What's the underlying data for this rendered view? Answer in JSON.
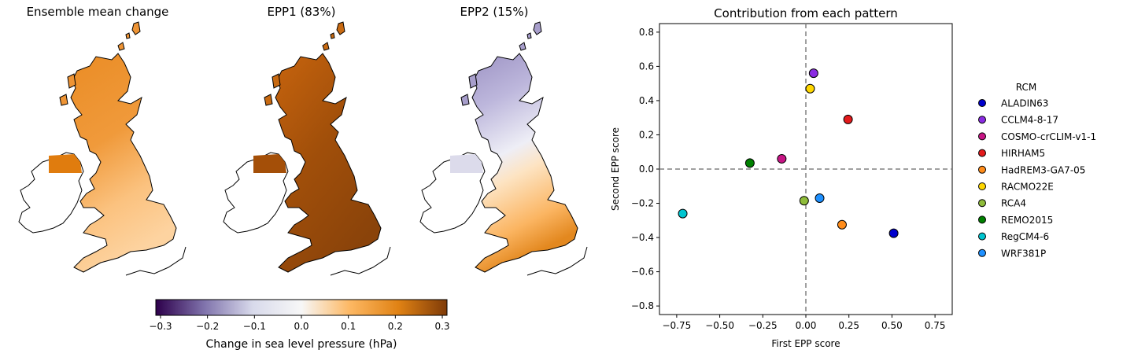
{
  "maps": [
    {
      "title": "Ensemble mean change",
      "palette": "mean"
    },
    {
      "title": "EPP1 (83%)",
      "palette": "epp1"
    },
    {
      "title": "EPP2 (15%)",
      "palette": "epp2"
    }
  ],
  "colorbar": {
    "label": "Change in sea level pressure (hPa)",
    "ticks": [
      "−0.3",
      "−0.2",
      "−0.1",
      "0.0",
      "0.1",
      "0.2",
      "0.3"
    ],
    "range": [
      -0.31,
      0.31
    ],
    "colormap": [
      "#2d004b",
      "#8073ac",
      "#d8daeb",
      "#f7f7f7",
      "#fdb863",
      "#e08214",
      "#7f3b08"
    ]
  },
  "chart_data": {
    "type": "scatter",
    "title": "Contribution from each pattern",
    "xlabel": "First EPP score",
    "ylabel": "Second EPP score",
    "xlim": [
      -0.85,
      0.85
    ],
    "ylim": [
      -0.85,
      0.85
    ],
    "xticks": [
      "−0.75",
      "−0.50",
      "−0.25",
      "0.00",
      "0.25",
      "0.50",
      "0.75"
    ],
    "yticks": [
      "−0.8",
      "−0.6",
      "−0.4",
      "−0.2",
      "0.0",
      "0.2",
      "0.4",
      "0.6",
      "0.8"
    ],
    "reference_lines": {
      "x": 0,
      "y": 0,
      "style": "dashed"
    },
    "legend_title": "RCM",
    "legend_position": "right",
    "series": [
      {
        "name": "ALADIN63",
        "color": "#0000cd",
        "x": 0.51,
        "y": -0.375
      },
      {
        "name": "CCLM4-8-17",
        "color": "#8a2be2",
        "x": 0.045,
        "y": 0.56
      },
      {
        "name": "COSMO-crCLIM-v1-1",
        "color": "#c71585",
        "x": -0.14,
        "y": 0.06
      },
      {
        "name": "HIRHAM5",
        "color": "#e31a1c",
        "x": 0.245,
        "y": 0.29
      },
      {
        "name": "HadREM3-GA7-05",
        "color": "#ff8c1a",
        "x": 0.21,
        "y": -0.325
      },
      {
        "name": "RACMO22E",
        "color": "#ffd700",
        "x": 0.025,
        "y": 0.47
      },
      {
        "name": "RCA4",
        "color": "#8fbc3a",
        "x": -0.01,
        "y": -0.185
      },
      {
        "name": "REMO2015",
        "color": "#008000",
        "x": -0.325,
        "y": 0.035
      },
      {
        "name": "RegCM4-6",
        "color": "#00c5d0",
        "x": -0.715,
        "y": -0.26
      },
      {
        "name": "WRF381P",
        "color": "#1e90ff",
        "x": 0.08,
        "y": -0.17
      }
    ]
  }
}
